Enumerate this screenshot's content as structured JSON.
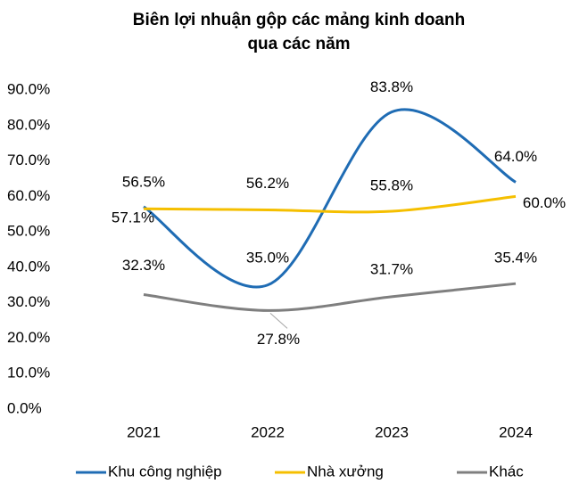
{
  "chart_data": {
    "type": "line",
    "title": [
      "Biên lợi nhuận gộp các mảng kinh doanh",
      "qua các năm"
    ],
    "categories": [
      "2021",
      "2022",
      "2023",
      "2024"
    ],
    "series": [
      {
        "name": "Khu công nghiệp",
        "color": "#1f6cb4",
        "values": [
          57.1,
          35.0,
          83.8,
          64.0
        ],
        "value_labels": [
          "57.1%",
          "35.0%",
          "83.8%",
          "64.0%"
        ]
      },
      {
        "name": "Nhà xưởng",
        "color": "#f5bf00",
        "values": [
          56.5,
          56.2,
          55.8,
          60.0
        ],
        "value_labels": [
          "56.5%",
          "56.2%",
          "55.8%",
          "60.0%"
        ]
      },
      {
        "name": "Khác",
        "color": "#7f7f7f",
        "values": [
          32.3,
          27.8,
          31.7,
          35.4
        ],
        "value_labels": [
          "32.3%",
          "27.8%",
          "31.7%",
          "35.4%"
        ]
      }
    ],
    "ylim": [
      0,
      90
    ],
    "yticks": [
      {
        "value": 0,
        "label": "0.0%"
      },
      {
        "value": 10,
        "label": "10.0%"
      },
      {
        "value": 20,
        "label": "20.0%"
      },
      {
        "value": 30,
        "label": "30.0%"
      },
      {
        "value": 40,
        "label": "40.0%"
      },
      {
        "value": 50,
        "label": "50.0%"
      },
      {
        "value": 60,
        "label": "60.0%"
      },
      {
        "value": 70,
        "label": "70.0%"
      },
      {
        "value": 80,
        "label": "80.0%"
      },
      {
        "value": 90,
        "label": "90.0%"
      }
    ],
    "grid": false,
    "legend": "bottom",
    "smooth": true
  }
}
